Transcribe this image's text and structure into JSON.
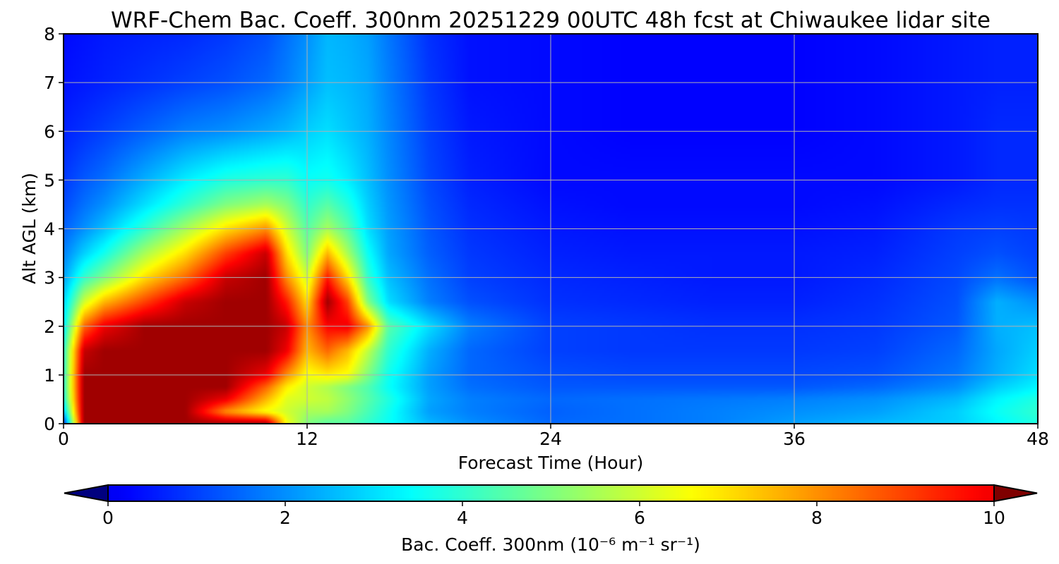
{
  "chart_data": {
    "type": "heatmap",
    "title": "WRF-Chem Bac. Coeff. 300nm  20251229 00UTC 48h fcst at Chiwaukee lidar site",
    "xlabel": "Forecast Time (Hour)",
    "ylabel": "Alt AGL (km)",
    "xlim": [
      0,
      48
    ],
    "ylim": [
      0,
      8
    ],
    "xticks": [
      "0",
      "12",
      "24",
      "36",
      "48"
    ],
    "yticks": [
      "0",
      "1",
      "2",
      "3",
      "4",
      "5",
      "6",
      "7",
      "8"
    ],
    "grid": true,
    "colormap": "jet",
    "colorbar": {
      "label": "Bac. Coeff. 300nm  (10⁻⁶ m⁻¹ sr⁻¹)",
      "range": [
        0,
        10
      ],
      "extend": "both",
      "ticks": [
        "0",
        "2",
        "4",
        "6",
        "8",
        "10"
      ]
    },
    "hours": [
      0,
      1,
      2,
      4,
      6,
      8,
      10,
      11,
      12,
      13,
      14,
      15,
      16,
      18,
      20,
      24,
      28,
      32,
      36,
      40,
      44,
      46,
      48
    ],
    "heights_km": [
      0,
      0.25,
      0.5,
      0.75,
      1,
      1.5,
      2,
      2.5,
      3,
      3.5,
      4,
      4.5,
      5,
      6,
      7,
      8
    ],
    "values": [
      [
        0.5,
        11,
        11,
        11,
        11,
        11,
        11,
        6.5,
        5.0,
        4.5,
        4.5,
        4.0,
        3.5,
        2.5,
        2.0,
        1.5,
        1.6,
        1.8,
        2.2,
        2.5,
        2.8,
        3.3,
        3.8
      ],
      [
        2.5,
        11,
        11,
        11,
        11,
        8.0,
        6.5,
        6.0,
        5.5,
        5.5,
        5.0,
        4.3,
        3.6,
        2.2,
        1.8,
        1.4,
        1.6,
        1.8,
        2.0,
        2.2,
        2.8,
        3.5,
        4.0
      ],
      [
        3.5,
        11,
        11,
        11,
        11,
        10.0,
        7.5,
        6.2,
        6.0,
        5.8,
        5.2,
        4.5,
        3.8,
        2.3,
        1.8,
        1.5,
        1.6,
        1.7,
        1.8,
        2.0,
        2.5,
        3.3,
        3.8
      ],
      [
        3.8,
        11,
        11,
        11,
        11,
        11,
        8.5,
        6.8,
        6.0,
        5.6,
        5.0,
        4.4,
        3.5,
        2.2,
        1.6,
        1.3,
        1.3,
        1.3,
        1.3,
        1.5,
        2.0,
        2.8,
        3.3
      ],
      [
        3.8,
        11,
        11,
        11,
        11,
        11,
        10.0,
        8.0,
        6.5,
        6.8,
        6.5,
        5.0,
        3.6,
        2.2,
        1.5,
        1.2,
        1.1,
        1.1,
        1.1,
        1.2,
        1.7,
        2.4,
        3.0
      ],
      [
        3.8,
        10.5,
        11,
        11,
        11,
        11,
        11,
        10.0,
        7.5,
        8.5,
        7.5,
        5.8,
        4.0,
        2.4,
        1.5,
        1.0,
        0.9,
        0.9,
        0.9,
        1.0,
        1.5,
        2.3,
        2.8
      ],
      [
        3.2,
        8.5,
        10.0,
        11,
        11,
        11,
        11,
        10.5,
        8.0,
        9.8,
        10.0,
        8.0,
        4.5,
        3.0,
        1.8,
        1.0,
        0.9,
        0.8,
        0.8,
        0.9,
        1.3,
        2.4,
        2.6
      ],
      [
        2.8,
        6.0,
        7.5,
        9.0,
        10.5,
        11,
        11,
        9.5,
        7.0,
        11,
        9.0,
        5.0,
        3.0,
        1.8,
        1.2,
        0.8,
        0.7,
        0.6,
        0.6,
        0.8,
        1.2,
        2.4,
        2.0
      ],
      [
        2.2,
        4.0,
        5.0,
        7.0,
        8.5,
        10.5,
        11,
        8.0,
        6.0,
        9.5,
        7.0,
        4.0,
        2.6,
        1.6,
        1.0,
        0.7,
        0.6,
        0.5,
        0.5,
        0.7,
        1.1,
        1.6,
        1.2
      ],
      [
        1.8,
        2.8,
        3.6,
        5.5,
        7.0,
        9.0,
        10.5,
        7.0,
        5.0,
        7.5,
        5.5,
        3.5,
        2.3,
        1.4,
        0.9,
        0.6,
        0.5,
        0.5,
        0.5,
        0.6,
        1.0,
        1.2,
        1.0
      ],
      [
        1.4,
        2.0,
        2.6,
        4.0,
        5.5,
        7.0,
        8.0,
        6.0,
        4.5,
        5.5,
        4.5,
        3.0,
        2.2,
        1.3,
        0.8,
        0.5,
        0.4,
        0.4,
        0.4,
        0.5,
        0.9,
        1.0,
        0.9
      ],
      [
        1.1,
        1.6,
        2.0,
        3.0,
        4.0,
        5.0,
        5.5,
        5.0,
        4.0,
        4.5,
        3.8,
        2.8,
        2.1,
        1.2,
        0.7,
        0.4,
        0.3,
        0.3,
        0.3,
        0.4,
        0.7,
        0.8,
        0.8
      ],
      [
        0.9,
        1.3,
        1.6,
        2.4,
        3.2,
        3.8,
        4.0,
        4.0,
        3.5,
        3.6,
        3.2,
        2.6,
        2.0,
        1.1,
        0.6,
        0.3,
        0.3,
        0.3,
        0.3,
        0.3,
        0.5,
        0.7,
        0.7
      ],
      [
        0.6,
        0.8,
        1.0,
        1.4,
        1.8,
        2.0,
        2.3,
        2.5,
        2.8,
        3.0,
        2.7,
        2.4,
        1.9,
        1.0,
        0.5,
        0.3,
        0.2,
        0.2,
        0.2,
        0.3,
        0.5,
        0.7,
        0.7
      ],
      [
        0.4,
        0.5,
        0.6,
        0.8,
        1.0,
        1.2,
        1.5,
        1.8,
        2.2,
        2.6,
        2.5,
        2.3,
        1.8,
        0.9,
        0.4,
        0.3,
        0.2,
        0.2,
        0.2,
        0.3,
        0.5,
        0.6,
        0.6
      ],
      [
        0.3,
        0.4,
        0.5,
        0.6,
        0.7,
        0.9,
        1.2,
        1.6,
        2.0,
        2.5,
        2.4,
        2.2,
        1.7,
        0.8,
        0.4,
        0.3,
        0.2,
        0.2,
        0.2,
        0.3,
        0.5,
        0.6,
        0.6
      ]
    ]
  }
}
